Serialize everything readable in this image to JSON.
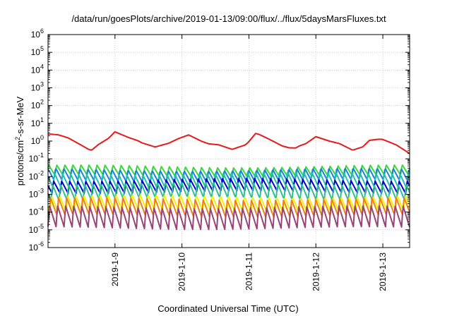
{
  "chart_data": {
    "type": "line",
    "title": "/data/run/goesPlots/archive/2019-01-13/09:00/flux/../flux/5daysMarsFluxes.txt",
    "xlabel": "Coordinated Universal Time (UTC)",
    "ylabel": "protons/cm2-s-sr-MeV",
    "ylabel_parts": {
      "pre": "protons/cm",
      "sup": "2",
      "post": "-s-sr-MeV"
    },
    "yscale": "log",
    "ylim_exp": [
      -6,
      6
    ],
    "y_tick_base": "10",
    "y_tick_exponents": [
      "-6",
      "-5",
      "-4",
      "-3",
      "-2",
      "-1",
      "0",
      "1",
      "2",
      "3",
      "4",
      "5",
      "6"
    ],
    "x_domain_days": [
      8.0,
      13.4
    ],
    "x_ticks": [
      {
        "day": 9,
        "label": "2019-1-9"
      },
      {
        "day": 10,
        "label": "2019-1-10"
      },
      {
        "day": 11,
        "label": "2019-1-11"
      },
      {
        "day": 12,
        "label": "2019-1-12"
      },
      {
        "day": 13,
        "label": "2019-1-13"
      }
    ],
    "grid": true,
    "legend": "none",
    "series": [
      {
        "color": "#e41a1c",
        "tooth_period_days": 0.6,
        "tooth_depth_dec": 0.25,
        "x": [
          8.0,
          8.3,
          8.5,
          8.65,
          8.75,
          8.9,
          9.0,
          9.2,
          9.4,
          9.6,
          9.8,
          9.95,
          10.1,
          10.3,
          10.5,
          10.75,
          10.95,
          11.1,
          11.3,
          11.5,
          11.7,
          11.85,
          12.0,
          12.2,
          12.4,
          12.55,
          12.7,
          12.8,
          13.0,
          13.2,
          13.4
        ],
        "y": [
          2.5,
          1.3,
          0.55,
          0.28,
          0.5,
          1.2,
          3.0,
          1.6,
          0.65,
          0.42,
          0.75,
          1.1,
          1.9,
          0.9,
          0.55,
          0.3,
          0.6,
          2.3,
          1.1,
          0.5,
          0.35,
          0.6,
          1.6,
          1.0,
          0.48,
          0.27,
          0.45,
          1.1,
          1.0,
          0.55,
          0.2
        ]
      },
      {
        "color": "#33dd33",
        "mean": 0.02,
        "amp_dec": 0.3,
        "tooth_period_days": 0.12
      },
      {
        "color": "#1e7fe0",
        "mean": 0.012,
        "amp_dec": 0.35,
        "tooth_period_days": 0.12
      },
      {
        "color": "#22c0b0",
        "mean": 0.006,
        "amp_dec": 0.4,
        "tooth_period_days": 0.12
      },
      {
        "color": "#0000cc",
        "mean": 0.003,
        "amp_dec": 0.35,
        "tooth_period_days": 0.12
      },
      {
        "color": "#30c090",
        "mean": 0.0015,
        "amp_dec": 0.45,
        "tooth_period_days": 0.12
      },
      {
        "color": "#f2f200",
        "mean": 0.0003,
        "amp_dec": 0.45,
        "tooth_period_days": 0.12
      },
      {
        "color": "#f07f1a",
        "mean": 0.00018,
        "amp_dec": 0.5,
        "tooth_period_days": 0.12
      },
      {
        "color": "#994477",
        "mean": 5e-05,
        "amp_dec": 0.6,
        "tooth_period_days": 0.12
      }
    ]
  }
}
